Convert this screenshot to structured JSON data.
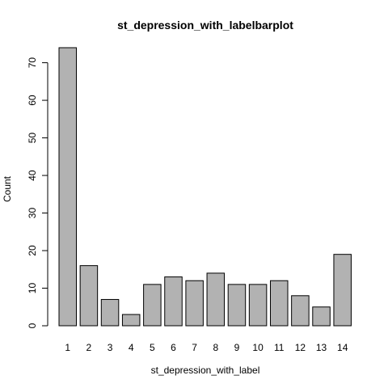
{
  "chart_data": {
    "type": "bar",
    "title": "st_depression_with_labelbarplot",
    "xlabel": "st_depression_with_label",
    "ylabel": "Count",
    "categories": [
      "1",
      "2",
      "3",
      "4",
      "5",
      "6",
      "7",
      "8",
      "9",
      "10",
      "11",
      "12",
      "13",
      "14"
    ],
    "values": [
      74,
      16,
      7,
      3,
      11,
      13,
      12,
      14,
      11,
      11,
      12,
      8,
      5,
      19
    ],
    "ylim": [
      0,
      74
    ],
    "yticks": [
      "0",
      "10",
      "20",
      "30",
      "40",
      "50",
      "60",
      "70"
    ],
    "bar_color": "#b2b2b2",
    "bar_border_color": "#000000",
    "grid": false,
    "legend": "none"
  }
}
